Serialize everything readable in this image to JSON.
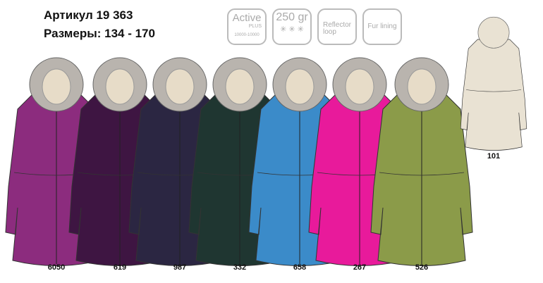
{
  "header": {
    "article": "Артикул  19 363",
    "sizes": "Размеры: 134 - 170"
  },
  "badges": [
    {
      "name": "active-plus",
      "line1": "Active",
      "line2": "PLUS",
      "line3": "10000-10000"
    },
    {
      "name": "insulation",
      "line1": "250 gr",
      "line2": "✳ ✳ ✳"
    },
    {
      "name": "reflector-loop",
      "line1": "Reflector",
      "line2": "loop"
    },
    {
      "name": "fur-lining",
      "line1": "Fur lining"
    }
  ],
  "jackets": [
    {
      "code": "6050",
      "color": "#8c2c7e"
    },
    {
      "code": "619",
      "color": "#3e1542"
    },
    {
      "code": "987",
      "color": "#2b2642"
    },
    {
      "code": "332",
      "color": "#1f3631"
    },
    {
      "code": "658",
      "color": "#3b8bc9"
    },
    {
      "code": "267",
      "color": "#e81a9b"
    },
    {
      "code": "526",
      "color": "#8b9b49"
    }
  ],
  "back_view": {
    "code": "101",
    "color": "#e9e2d3"
  }
}
